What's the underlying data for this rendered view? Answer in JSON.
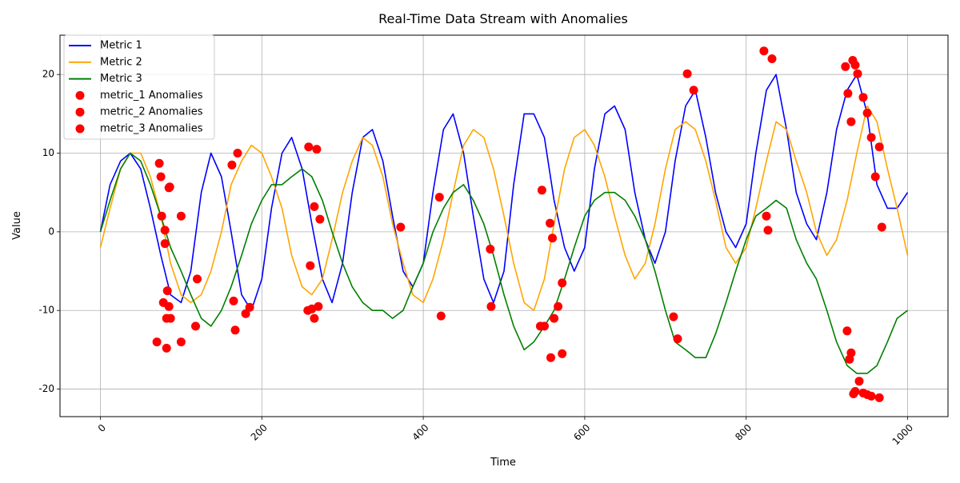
{
  "chart_data": {
    "type": "line",
    "title": "Real-Time Data Stream with Anomalies",
    "xlabel": "Time",
    "ylabel": "Value",
    "xlim": [
      -50,
      1050
    ],
    "ylim": [
      -23.5,
      25
    ],
    "xticks": [
      0,
      200,
      400,
      600,
      800,
      1000
    ],
    "yticks": [
      -20,
      -10,
      0,
      10,
      20
    ],
    "xtick_rotation": 45,
    "grid": true,
    "legend_position": "top-left",
    "legend": [
      "Metric 1",
      "Metric 2",
      "Metric 3",
      "metric_1 Anomalies",
      "metric_2 Anomalies",
      "metric_3 Anomalies"
    ],
    "series": [
      {
        "name": "Metric 1",
        "color": "#0000ff",
        "x": [
          0,
          12,
          25,
          37,
          50,
          62,
          75,
          87,
          100,
          112,
          125,
          137,
          150,
          162,
          175,
          187,
          200,
          212,
          225,
          237,
          250,
          262,
          275,
          287,
          300,
          312,
          325,
          337,
          350,
          362,
          375,
          387,
          400,
          412,
          425,
          437,
          450,
          462,
          475,
          487,
          500,
          512,
          525,
          537,
          550,
          562,
          575,
          587,
          600,
          612,
          625,
          637,
          650,
          662,
          675,
          687,
          700,
          712,
          725,
          737,
          750,
          762,
          775,
          787,
          800,
          812,
          825,
          837,
          850,
          862,
          875,
          887,
          900,
          912,
          925,
          937,
          950,
          962,
          975,
          987,
          1000
        ],
        "y": [
          0,
          6,
          9,
          10,
          8,
          3,
          -3,
          -8,
          -9,
          -5,
          5,
          10,
          7,
          0,
          -8,
          -10,
          -6,
          3,
          10,
          12,
          8,
          1,
          -6,
          -9,
          -4,
          5,
          12,
          13,
          9,
          2,
          -5,
          -7,
          -4,
          5,
          13,
          15,
          10,
          2,
          -6,
          -9,
          -5,
          6,
          15,
          15,
          12,
          4,
          -2,
          -5,
          -2,
          8,
          15,
          16,
          13,
          5,
          -1,
          -4,
          0,
          9,
          16,
          18,
          12,
          5,
          0,
          -2,
          1,
          10,
          18,
          20,
          13,
          5,
          1,
          -1,
          5,
          13,
          18,
          20,
          15,
          6,
          3,
          3,
          5
        ]
      },
      {
        "name": "Metric 2",
        "color": "#ffa500",
        "x": [
          0,
          12,
          25,
          37,
          50,
          62,
          75,
          87,
          100,
          112,
          125,
          137,
          150,
          162,
          175,
          187,
          200,
          212,
          225,
          237,
          250,
          262,
          275,
          287,
          300,
          312,
          325,
          337,
          350,
          362,
          375,
          387,
          400,
          412,
          425,
          437,
          450,
          462,
          475,
          487,
          500,
          512,
          525,
          537,
          550,
          562,
          575,
          587,
          600,
          612,
          625,
          637,
          650,
          662,
          675,
          687,
          700,
          712,
          725,
          737,
          750,
          762,
          775,
          787,
          800,
          812,
          825,
          837,
          850,
          862,
          875,
          887,
          900,
          912,
          925,
          937,
          950,
          962,
          975,
          987,
          1000
        ],
        "y": [
          -2,
          3,
          8,
          10,
          10,
          7,
          2,
          -4,
          -8,
          -9,
          -8,
          -5,
          0,
          6,
          9,
          11,
          10,
          7,
          3,
          -3,
          -7,
          -8,
          -6,
          -1,
          5,
          9,
          12,
          11,
          7,
          1,
          -4,
          -8,
          -9,
          -6,
          -1,
          5,
          11,
          13,
          12,
          8,
          2,
          -4,
          -9,
          -10,
          -6,
          1,
          8,
          12,
          13,
          11,
          7,
          2,
          -3,
          -6,
          -4,
          1,
          8,
          13,
          14,
          13,
          9,
          4,
          -2,
          -4,
          -2,
          3,
          9,
          14,
          13,
          9,
          5,
          0,
          -3,
          -1,
          4,
          10,
          16,
          14,
          8,
          3,
          -3
        ]
      },
      {
        "name": "Metric 3",
        "color": "#008000",
        "x": [
          0,
          12,
          25,
          37,
          50,
          62,
          75,
          87,
          100,
          112,
          125,
          137,
          150,
          162,
          175,
          187,
          200,
          212,
          225,
          237,
          250,
          262,
          275,
          287,
          300,
          312,
          325,
          337,
          350,
          362,
          375,
          387,
          400,
          412,
          425,
          437,
          450,
          462,
          475,
          487,
          500,
          512,
          525,
          537,
          550,
          562,
          575,
          587,
          600,
          612,
          625,
          637,
          650,
          662,
          675,
          687,
          700,
          712,
          725,
          737,
          750,
          762,
          775,
          787,
          800,
          812,
          825,
          837,
          850,
          862,
          875,
          887,
          900,
          912,
          925,
          937,
          950,
          962,
          975,
          987,
          1000
        ],
        "y": [
          0,
          4,
          8,
          10,
          9,
          6,
          2,
          -2,
          -5,
          -8,
          -11,
          -12,
          -10,
          -7,
          -3,
          1,
          4,
          6,
          6,
          7,
          8,
          7,
          4,
          0,
          -4,
          -7,
          -9,
          -10,
          -10,
          -11,
          -10,
          -7,
          -4,
          0,
          3,
          5,
          6,
          4,
          1,
          -3,
          -8,
          -12,
          -15,
          -14,
          -12,
          -10,
          -6,
          -2,
          2,
          4,
          5,
          5,
          4,
          2,
          -1,
          -5,
          -10,
          -14,
          -15,
          -16,
          -16,
          -13,
          -9,
          -5,
          -1,
          2,
          3,
          4,
          3,
          -1,
          -4,
          -6,
          -10,
          -14,
          -17,
          -18,
          -18,
          -17,
          -14,
          -11,
          -10
        ]
      }
    ],
    "anomalies": {
      "name": "Anomalies",
      "color": "#ff0000",
      "x": [
        70,
        75,
        80,
        82,
        85,
        100,
        73,
        76,
        78,
        80,
        82,
        83,
        85,
        86,
        87,
        100,
        118,
        120,
        163,
        165,
        167,
        170,
        180,
        185,
        258,
        260,
        262,
        265,
        268,
        272,
        257,
        265,
        270,
        372,
        420,
        422,
        483,
        484,
        547,
        550,
        557,
        560,
        567,
        572,
        710,
        715,
        727,
        735,
        822,
        825,
        827,
        832,
        923,
        926,
        930,
        932,
        935,
        938,
        945,
        950,
        955,
        965,
        960,
        925,
        928,
        930,
        933,
        935,
        940,
        945,
        950,
        955,
        965,
        968,
        545,
        558,
        562,
        572
      ],
      "y": [
        -14,
        7,
        -1.5,
        -14.8,
        5.6,
        2,
        8.7,
        2,
        -9,
        0.2,
        -11,
        -7.5,
        -9.5,
        5.7,
        -11,
        -14,
        -12,
        -6,
        8.5,
        -8.8,
        -12.5,
        10,
        -10.4,
        -9.6,
        10.8,
        -4.3,
        -9.8,
        3.2,
        10.5,
        1.6,
        -10,
        -11,
        -9.5,
        0.6,
        4.4,
        -10.7,
        -2.2,
        -9.5,
        5.3,
        -12,
        1.1,
        -0.8,
        -9.5,
        -6.5,
        -10.8,
        -13.6,
        20.1,
        18,
        23,
        2,
        0.2,
        22,
        21,
        17.6,
        14,
        21.8,
        21.2,
        20.1,
        17.1,
        15.1,
        12,
        10.8,
        7,
        -12.6,
        -16.2,
        -15.4,
        -20.6,
        -20.3,
        -19,
        -20.5,
        -20.7,
        -20.9,
        -21.1,
        0.6,
        -12,
        -16,
        -11,
        -15.5
      ]
    }
  }
}
